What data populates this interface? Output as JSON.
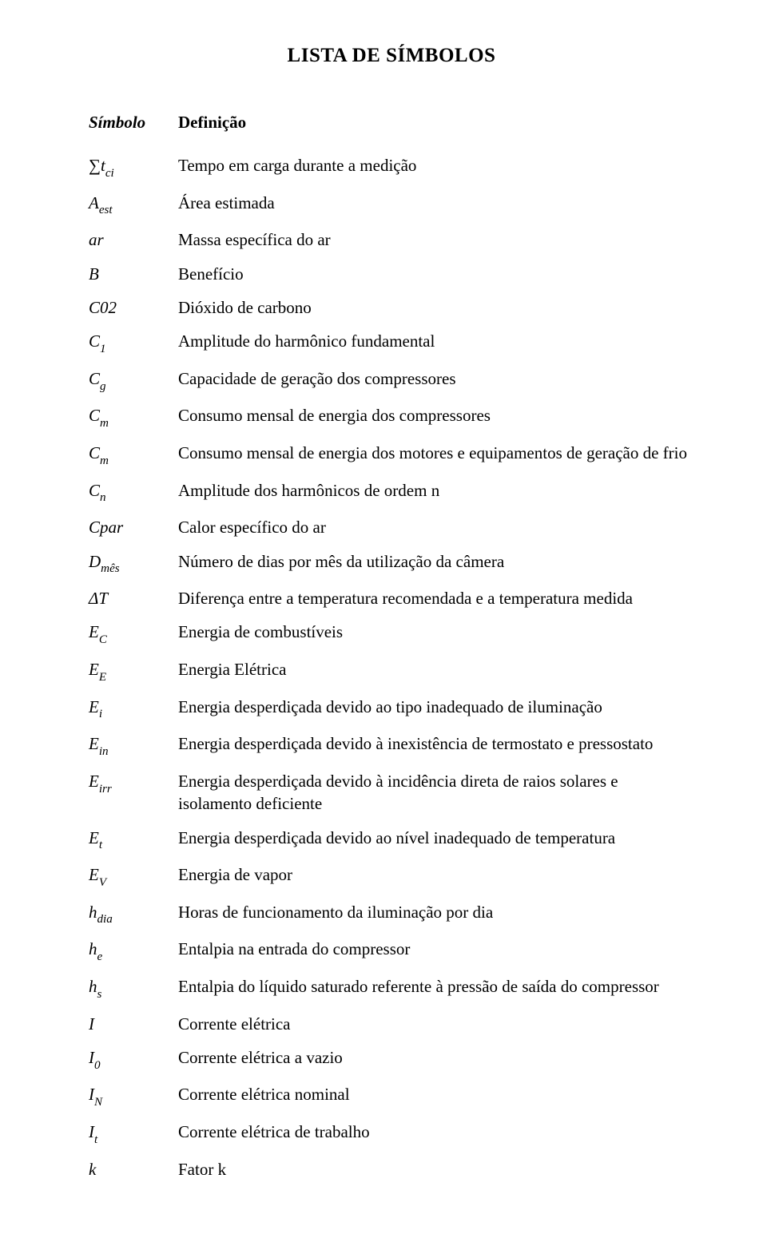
{
  "title": "LISTA DE SÍMBOLOS",
  "header": {
    "symbol": "Símbolo",
    "definition": "Definição"
  },
  "rows": [
    {
      "sym_html": "<span class='sigma'>∑</span>t<span class='sub'>ci</span>",
      "def": "Tempo em carga durante a medição"
    },
    {
      "sym_html": "A<span class='sub'>est</span>",
      "def": "Área estimada"
    },
    {
      "sym_html": "ar",
      "def": "Massa específica do ar"
    },
    {
      "sym_html": "B",
      "def": "Benefício"
    },
    {
      "sym_html": "C02",
      "def": "Dióxido de carbono"
    },
    {
      "sym_html": "C<span class='sub'>1</span>",
      "def": "Amplitude do harmônico fundamental"
    },
    {
      "sym_html": "C<span class='sub'>g</span>",
      "def": "Capacidade de geração dos compressores"
    },
    {
      "sym_html": "C<span class='sub'>m</span>",
      "def": "Consumo mensal de energia dos compressores"
    },
    {
      "sym_html": "C<span class='sub'>m</span>",
      "def": "Consumo mensal de energia dos motores e equipamentos de geração de frio"
    },
    {
      "sym_html": "C<span class='sub'>n</span>",
      "def": "Amplitude dos harmônicos de ordem n"
    },
    {
      "sym_html": "Cpar",
      "def": "Calor específico do ar"
    },
    {
      "sym_html": "D<span class='sub'>mês</span>",
      "def": "Número de dias por mês da utilização da câmera"
    },
    {
      "sym_html": "<span class='delta'>ΔT</span>",
      "def": "Diferença entre a temperatura recomendada e a temperatura medida"
    },
    {
      "sym_html": "E<span class='sub'>C</span>",
      "def": "Energia de combustíveis"
    },
    {
      "sym_html": "E<span class='sub'>E</span>",
      "def": "Energia Elétrica"
    },
    {
      "sym_html": "E<span class='sub'>i</span>",
      "def": "Energia desperdiçada devido ao tipo inadequado de iluminação"
    },
    {
      "sym_html": "E<span class='sub'>in</span>",
      "def": "Energia desperdiçada devido à inexistência de termostato e pressostato"
    },
    {
      "sym_html": "E<span class='sub'>irr</span>",
      "def": "Energia desperdiçada devido à incidência direta de raios solares e isolamento deficiente"
    },
    {
      "sym_html": "E<span class='sub'>t</span>",
      "def": "Energia desperdiçada devido ao nível inadequado de temperatura"
    },
    {
      "sym_html": "E<span class='sub'>V</span>",
      "def": "Energia de vapor"
    },
    {
      "sym_html": "h<span class='sub'>dia</span>",
      "def": "Horas de funcionamento da iluminação por dia"
    },
    {
      "sym_html": "h<span class='sub'>e</span>",
      "def": "Entalpia na entrada do compressor"
    },
    {
      "sym_html": "h<span class='sub'>s</span>",
      "def": "Entalpia do líquido saturado referente à pressão de saída do compressor"
    },
    {
      "sym_html": "I",
      "def": "Corrente elétrica"
    },
    {
      "sym_html": "I<span class='sub'>0</span>",
      "def": "Corrente elétrica a vazio"
    },
    {
      "sym_html": "I<span class='sub'>N</span>",
      "def": "Corrente elétrica nominal"
    },
    {
      "sym_html": "I<span class='sub'>t</span>",
      "def": "Corrente elétrica de trabalho"
    },
    {
      "sym_html": "k",
      "def": "Fator k"
    }
  ]
}
